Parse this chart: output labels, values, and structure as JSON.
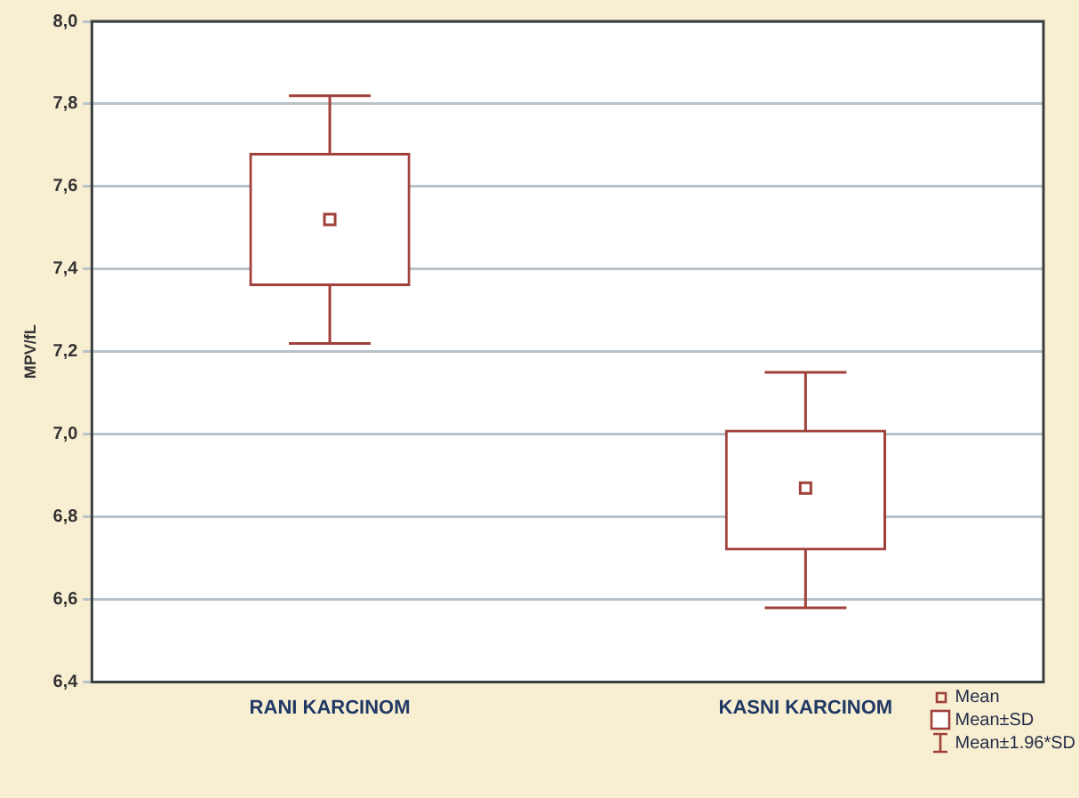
{
  "chart_data": {
    "type": "box",
    "ylabel": "MPV/fL",
    "categories": [
      "RANI KARCINOM",
      "KASNI KARCINOM"
    ],
    "boxes": [
      {
        "low": 7.22,
        "q1": 7.36,
        "median": 7.52,
        "q3": 7.68,
        "high": 7.82
      },
      {
        "low": 6.58,
        "q1": 6.72,
        "median": 6.87,
        "q3": 7.01,
        "high": 7.15
      }
    ],
    "color": "#a0403a",
    "ylim": [
      6.4,
      8.0
    ],
    "yticks": [
      {
        "value": 6.4,
        "label": "6,4"
      },
      {
        "value": 6.6,
        "label": "6,6"
      },
      {
        "value": 6.8,
        "label": "6,8"
      },
      {
        "value": 7.0,
        "label": "7,0"
      },
      {
        "value": 7.2,
        "label": "7,2"
      },
      {
        "value": 7.4,
        "label": "7,4"
      },
      {
        "value": 7.6,
        "label": "7,6"
      },
      {
        "value": 7.8,
        "label": "7,8"
      },
      {
        "value": 8.0,
        "label": "8,0"
      }
    ],
    "grid": "y",
    "annotations": [
      "Mean",
      "Mean±SD",
      "Mean±1.96*SD"
    ]
  }
}
